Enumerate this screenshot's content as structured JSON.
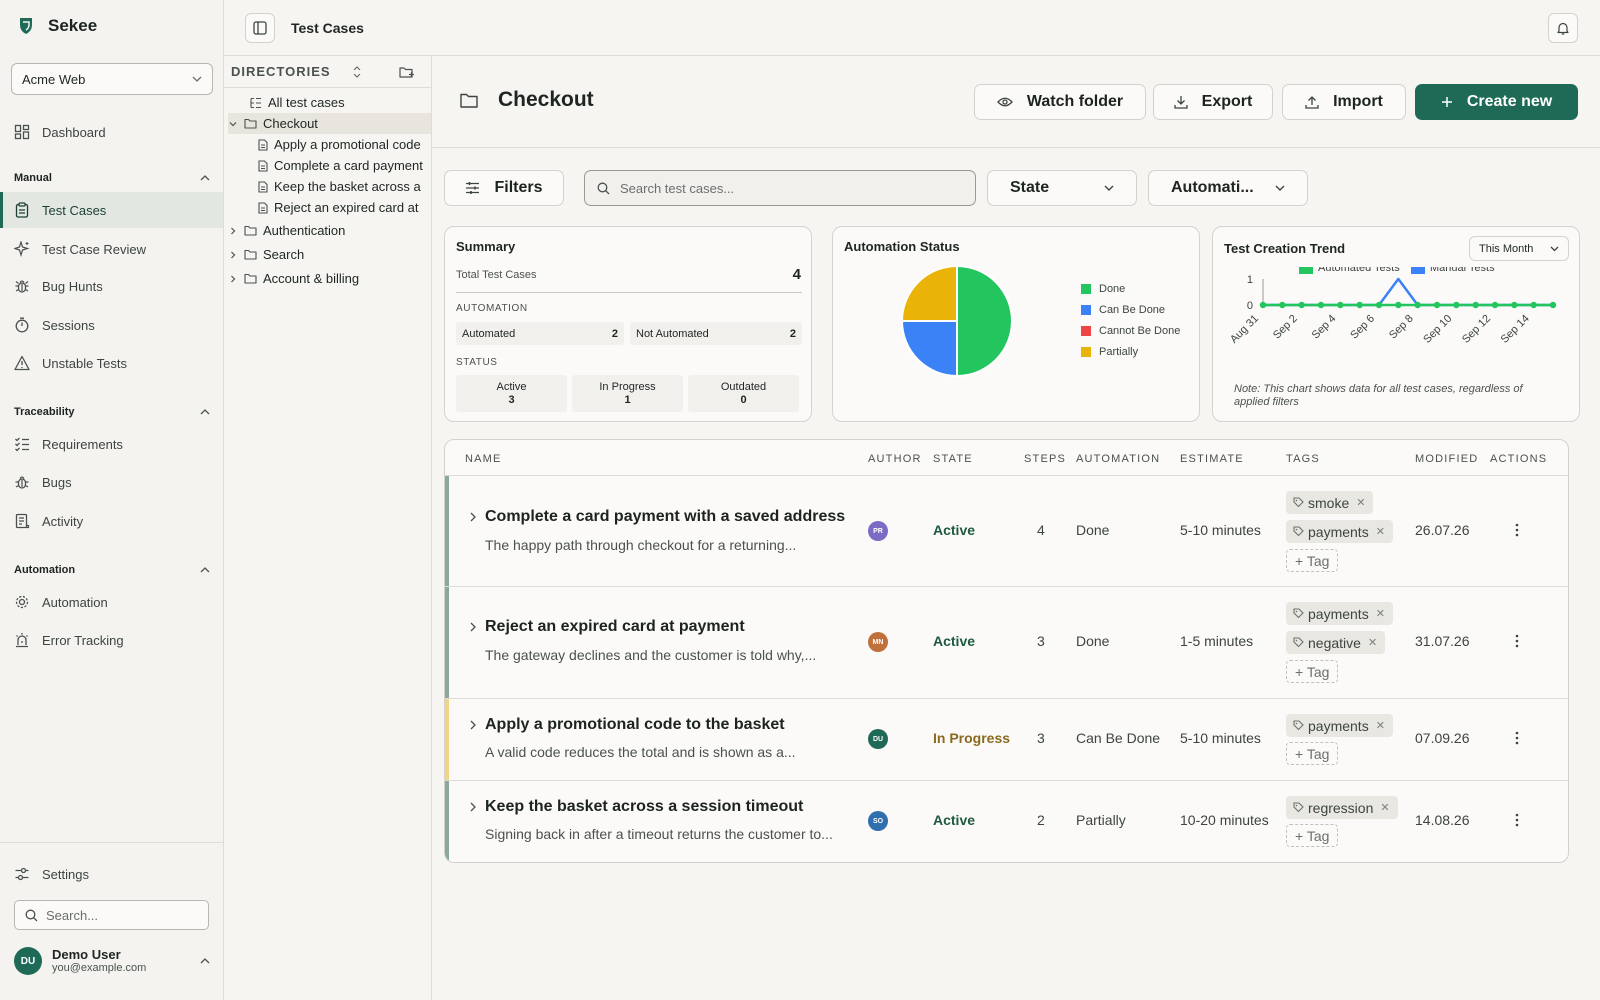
{
  "app": {
    "name": "Sekee",
    "project": "Acme Web",
    "brand_color": "#1e6a56"
  },
  "header": {
    "title": "Test Cases"
  },
  "sidebar": {
    "dashboard": "Dashboard",
    "manual": {
      "label": "Manual",
      "items": [
        "Test Cases",
        "Test Case Review",
        "Bug Hunts",
        "Sessions",
        "Unstable Tests"
      ]
    },
    "traceability": {
      "label": "Traceability",
      "items": [
        "Requirements",
        "Bugs",
        "Activity"
      ]
    },
    "automation": {
      "label": "Automation",
      "items": [
        "Automation",
        "Error Tracking"
      ]
    },
    "settings": "Settings",
    "search_placeholder": "Search...",
    "user": {
      "initials": "DU",
      "name": "Demo User",
      "email": "you@example.com"
    }
  },
  "directories": {
    "heading": "DIRECTORIES",
    "all": "All test cases",
    "open_folder": "Checkout",
    "files": [
      "Apply a promotional code",
      "Complete a card payment",
      "Keep the basket across a",
      "Reject an expired card at"
    ],
    "folders": [
      "Authentication",
      "Search",
      "Account & billing"
    ]
  },
  "page": {
    "title": "Checkout",
    "watch": "Watch folder",
    "export": "Export",
    "import": "Import",
    "create": "Create new",
    "filters": "Filters",
    "search_placeholder": "Search test cases...",
    "state_select": "State",
    "automation_select": "Automati..."
  },
  "summary": {
    "title": "Summary",
    "total_label": "Total Test Cases",
    "total": "4",
    "automation_label": "AUTOMATION",
    "automated_label": "Automated",
    "automated": "2",
    "not_automated_label": "Not Automated",
    "not_automated": "2",
    "status_label": "STATUS",
    "status": [
      {
        "label": "Active",
        "value": "3"
      },
      {
        "label": "In Progress",
        "value": "1"
      },
      {
        "label": "Outdated",
        "value": "0"
      }
    ]
  },
  "automation_status": {
    "title": "Automation Status",
    "legend": [
      {
        "label": "Done",
        "color": "#22c55e"
      },
      {
        "label": "Can Be Done",
        "color": "#3b82f6"
      },
      {
        "label": "Cannot Be Done",
        "color": "#ef4444"
      },
      {
        "label": "Partially",
        "color": "#eab308"
      }
    ]
  },
  "trend": {
    "title": "Test Creation Trend",
    "period": "This Month",
    "note": "Note: This chart shows data for all test cases, regardless of applied filters"
  },
  "chart_data": [
    {
      "type": "pie",
      "title": "Automation Status",
      "categories": [
        "Done",
        "Can Be Done",
        "Cannot Be Done",
        "Partially"
      ],
      "values": [
        2,
        1,
        0,
        1
      ],
      "colors": [
        "#22c55e",
        "#3b82f6",
        "#ef4444",
        "#eab308"
      ]
    },
    {
      "type": "line",
      "title": "Test Creation Trend",
      "x": [
        "Aug 31",
        "Sep 1",
        "Sep 2",
        "Sep 3",
        "Sep 4",
        "Sep 5",
        "Sep 6",
        "Sep 7",
        "Sep 8",
        "Sep 9",
        "Sep 10",
        "Sep 11",
        "Sep 12",
        "Sep 13",
        "Sep 14",
        "Sep 15"
      ],
      "tick_labels": [
        "Aug 31",
        "Sep 2",
        "Sep 4",
        "Sep 6",
        "Sep 8",
        "Sep 10",
        "Sep 12",
        "Sep 14"
      ],
      "series": [
        {
          "name": "Automated Tests",
          "color": "#22c55e",
          "values": [
            0,
            0,
            0,
            0,
            0,
            0,
            0,
            0,
            0,
            0,
            0,
            0,
            0,
            0,
            0,
            0
          ]
        },
        {
          "name": "Manual Tests",
          "color": "#3b82f6",
          "values": [
            0,
            0,
            0,
            0,
            0,
            0,
            0,
            1,
            0,
            0,
            0,
            0,
            0,
            0,
            0,
            0
          ]
        }
      ],
      "y_ticks": [
        "0",
        "1"
      ],
      "ylim": [
        0,
        1
      ],
      "legend": "top"
    }
  ],
  "table": {
    "headers": [
      "NAME",
      "AUTHOR",
      "STATE",
      "STEPS",
      "AUTOMATION",
      "ESTIMATE",
      "TAGS",
      "MODIFIED",
      "ACTIONS"
    ],
    "add_tag": "+ Tag",
    "rows": [
      {
        "title": "Complete a card payment with a saved address",
        "desc": "The happy path through checkout for a returning...",
        "author": "PR",
        "author_color": "#7c6bc4",
        "state": "Active",
        "steps": "4",
        "automation": "Done",
        "estimate": "5-10 minutes",
        "tags": [
          "smoke",
          "payments"
        ],
        "modified": "26.07.26",
        "bar_color": "#8aa99a"
      },
      {
        "title": "Reject an expired card at payment",
        "desc": "The gateway declines and the customer is told why,...",
        "author": "MN",
        "author_color": "#c0703a",
        "state": "Active",
        "steps": "3",
        "automation": "Done",
        "estimate": "1-5 minutes",
        "tags": [
          "payments",
          "negative"
        ],
        "modified": "31.07.26",
        "bar_color": "#8aa99a"
      },
      {
        "title": "Apply a promotional code to the basket",
        "desc": "A valid code reduces the total and is shown as a...",
        "author": "DU",
        "author_color": "#1e6a56",
        "state": "In Progress",
        "steps": "3",
        "automation": "Can Be Done",
        "estimate": "5-10 minutes",
        "tags": [
          "payments"
        ],
        "modified": "07.09.26",
        "bar_color": "#f0d48a"
      },
      {
        "title": "Keep the basket across a session timeout",
        "desc": "Signing back in after a timeout returns the customer to...",
        "author": "SO",
        "author_color": "#2f6fae",
        "state": "Active",
        "steps": "2",
        "automation": "Partially",
        "estimate": "10-20 minutes",
        "tags": [
          "regression"
        ],
        "modified": "14.08.26",
        "bar_color": "#8aa99a"
      }
    ]
  }
}
